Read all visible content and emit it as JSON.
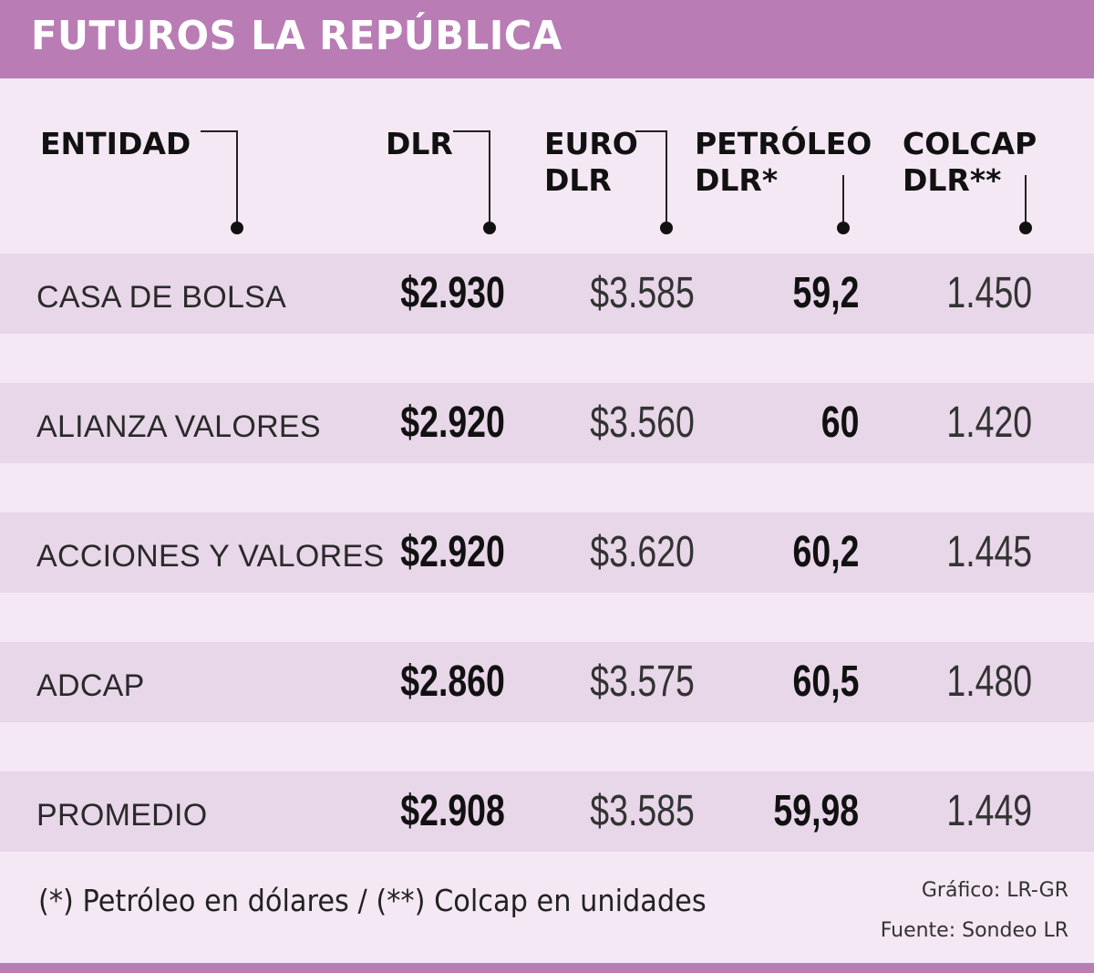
{
  "title": "FUTUROS LA REPÚBLICA",
  "chart_data": {
    "type": "table",
    "columns": [
      {
        "key": "entidad",
        "lines": [
          "ENTIDAD"
        ]
      },
      {
        "key": "dlr",
        "lines": [
          "DLR"
        ]
      },
      {
        "key": "euro_dlr",
        "lines": [
          "EURO",
          "DLR"
        ]
      },
      {
        "key": "petroleo_dlr",
        "lines": [
          "PETRÓLEO",
          "DLR*"
        ]
      },
      {
        "key": "colcap_dlr",
        "lines": [
          "COLCAP",
          "DLR**"
        ]
      }
    ],
    "rows": [
      {
        "entidad": "CASA DE BOLSA",
        "dlr": "$2.930",
        "euro_dlr": "$3.585",
        "petroleo_dlr": "59,2",
        "colcap_dlr": "1.450"
      },
      {
        "entidad": "ALIANZA VALORES",
        "dlr": "$2.920",
        "euro_dlr": "$3.560",
        "petroleo_dlr": "60",
        "colcap_dlr": "1.420"
      },
      {
        "entidad": "ACCIONES Y VALORES",
        "dlr": "$2.920",
        "euro_dlr": "$3.620",
        "petroleo_dlr": "60,2",
        "colcap_dlr": "1.445"
      },
      {
        "entidad": "ADCAP",
        "dlr": "$2.860",
        "euro_dlr": "$3.575",
        "petroleo_dlr": "60,5",
        "colcap_dlr": "1.480"
      },
      {
        "entidad": "PROMEDIO",
        "dlr": "$2.908",
        "euro_dlr": "$3.585",
        "petroleo_dlr": "59,98",
        "colcap_dlr": "1.449"
      }
    ]
  },
  "footnote": {
    "p1": "(*) ",
    "petroleo": "Petróleo",
    "p2": " en dólares / (**) ",
    "colcap": "Colcap",
    "p3": " en unidades"
  },
  "credits": {
    "grafico": "Gráfico: LR-GR",
    "fuente": "Fuente: Sondeo LR"
  },
  "colors": {
    "accent": "#b97cb4",
    "background": "#f3e8f3",
    "row_band": "#e8d7e8"
  }
}
